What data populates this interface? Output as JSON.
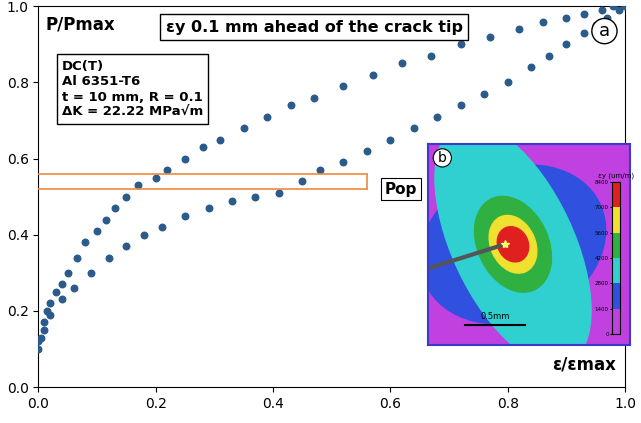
{
  "chart_data": {
    "type": "scatter",
    "title": "εy 0.1 mm ahead of the crack tip",
    "x_label": "ε/εmax",
    "y_label": "P/Pmax",
    "color": "#2b5b8a",
    "marker": "o",
    "x": [
      0.0,
      0.005,
      0.01,
      0.015,
      0.02,
      0.03,
      0.04,
      0.05,
      0.065,
      0.08,
      0.1,
      0.115,
      0.13,
      0.15,
      0.17,
      0.2,
      0.22,
      0.25,
      0.28,
      0.31,
      0.35,
      0.39,
      0.43,
      0.47,
      0.52,
      0.57,
      0.62,
      0.67,
      0.72,
      0.77,
      0.82,
      0.86,
      0.9,
      0.93,
      0.96,
      0.98,
      1.0,
      0.0,
      0.01,
      0.02,
      0.04,
      0.06,
      0.09,
      0.12,
      0.15,
      0.18,
      0.21,
      0.25,
      0.29,
      0.33,
      0.37,
      0.41,
      0.45,
      0.48,
      0.52,
      0.56,
      0.6,
      0.64,
      0.68,
      0.72,
      0.76,
      0.8,
      0.84,
      0.87,
      0.9,
      0.93,
      0.95,
      0.97,
      0.99
    ],
    "values": [
      0.1,
      0.13,
      0.17,
      0.2,
      0.22,
      0.25,
      0.27,
      0.3,
      0.34,
      0.38,
      0.41,
      0.44,
      0.47,
      0.5,
      0.53,
      0.55,
      0.57,
      0.6,
      0.63,
      0.65,
      0.68,
      0.71,
      0.74,
      0.76,
      0.79,
      0.82,
      0.85,
      0.87,
      0.9,
      0.92,
      0.94,
      0.96,
      0.97,
      0.98,
      0.99,
      1.0,
      1.0,
      0.12,
      0.15,
      0.19,
      0.23,
      0.26,
      0.3,
      0.34,
      0.37,
      0.4,
      0.42,
      0.45,
      0.47,
      0.49,
      0.5,
      0.51,
      0.54,
      0.57,
      0.59,
      0.62,
      0.65,
      0.68,
      0.71,
      0.74,
      0.77,
      0.8,
      0.84,
      0.87,
      0.9,
      0.93,
      0.95,
      0.97,
      0.99
    ],
    "xlim": [
      0,
      1
    ],
    "ylim": [
      0,
      1
    ],
    "xticks": [
      {
        "value": 0,
        "label": "0.0"
      },
      {
        "value": 0.2,
        "label": "0.2"
      },
      {
        "value": 0.4,
        "label": "0.4"
      },
      {
        "value": 0.6,
        "label": "0.6"
      },
      {
        "value": 0.8,
        "label": "0.8"
      },
      {
        "value": 1,
        "label": "1.0"
      }
    ],
    "yticks": [
      {
        "value": 0,
        "label": "0.0"
      },
      {
        "value": 0.2,
        "label": "0.2"
      },
      {
        "value": 0.4,
        "label": "0.4"
      },
      {
        "value": 0.6,
        "label": "0.6"
      },
      {
        "value": 0.8,
        "label": "0.8"
      },
      {
        "value": 1,
        "label": "1.0"
      }
    ],
    "grid": false,
    "annotations": {
      "specimen": [
        "DC(T)",
        "Al 6351-T6",
        "t = 10 mm, R = 0.1",
        "ΔK = 22.22 MPa√m"
      ],
      "panel": "a",
      "pop_label": "Pop",
      "pop_levels": [
        0.56,
        0.52
      ],
      "pop_x_end": 0.56,
      "pop_color": "#f08a3c"
    },
    "inset": {
      "panel": "b",
      "scale_bar": "0.5mm",
      "colorbar_title": "εy (um/m)",
      "colorbar_range": [
        0,
        8400
      ],
      "colorbar_ticks": [
        0,
        1400,
        2800,
        4200,
        5600,
        7000,
        8400
      ]
    }
  }
}
